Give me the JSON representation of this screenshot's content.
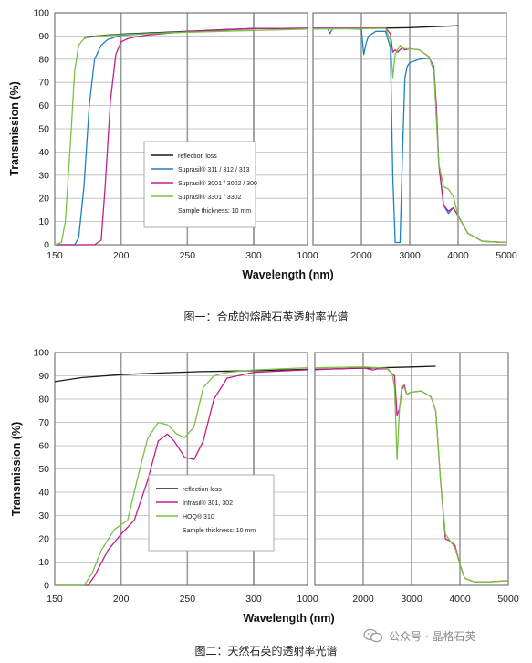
{
  "chart_data": [
    {
      "type": "line",
      "caption": "图一：合成的熔融石英透射率光谱",
      "xlabel": "Wavelength (nm)",
      "ylabel": "Transmission (%)",
      "ylim": [
        0,
        100
      ],
      "yticks": [
        0,
        10,
        20,
        30,
        40,
        50,
        60,
        70,
        80,
        90,
        100
      ],
      "grid": true,
      "legend_placement": "center",
      "panels": [
        {
          "xlim": [
            150,
            300
          ],
          "xticks": [
            150,
            200,
            250,
            300
          ],
          "tick_labels": [
            "150",
            "200",
            "250",
            "300"
          ]
        },
        {
          "xlim": [
            300,
            1000
          ],
          "xticks": [
            300,
            1000
          ],
          "tick_labels": [
            "",
            "1000"
          ]
        },
        {
          "xlim": [
            1000,
            5000
          ],
          "xticks": [
            1000,
            2000,
            3000,
            4000,
            5000
          ],
          "tick_labels": [
            "",
            "2000",
            "3000",
            "4000",
            "5000"
          ]
        }
      ],
      "legend": [
        {
          "label": "reflection loss",
          "color": "#1a1a1a"
        },
        {
          "label": "Suprasil® 311 / 312 / 313",
          "color": "#1f7fc4"
        },
        {
          "label": "Suprasil® 3001 / 3002 / 300",
          "color": "#c0208a"
        },
        {
          "label": "Suprasil® 3301 / 3302",
          "color": "#7ac143"
        }
      ],
      "note": "Sample thickness: 10 mm",
      "series": [
        {
          "name": "reflection loss",
          "color": "#1a1a1a",
          "x": [
            172,
            190,
            200,
            220,
            250,
            280,
            300,
            1000,
            1500,
            2000,
            2500,
            3000,
            3500,
            4000
          ],
          "y": [
            89.5,
            90.4,
            90.8,
            91.3,
            92.0,
            92.8,
            93.2,
            93.3,
            93.3,
            93.3,
            93.4,
            93.6,
            94.0,
            94.4
          ]
        },
        {
          "name": "Suprasil® 311 / 312 / 313",
          "color": "#1f7fc4",
          "x": [
            150,
            165,
            168,
            172,
            176,
            180,
            185,
            190,
            200,
            220,
            250,
            300,
            1000,
            1300,
            1350,
            1400,
            1500,
            2000,
            2050,
            2100,
            2150,
            2300,
            2500,
            2600,
            2650,
            2700,
            2750,
            2800,
            2850,
            2900,
            2950,
            3000,
            3200,
            3400,
            3500,
            3550,
            3600,
            3700,
            3800,
            3900,
            4000,
            4200,
            4500,
            5000
          ],
          "y": [
            0,
            0,
            3,
            25,
            60,
            80,
            86,
            88.5,
            90.3,
            91.0,
            91.9,
            93.2,
            93.3,
            93.3,
            91,
            93.1,
            93.2,
            93.0,
            82,
            87,
            90,
            92,
            92,
            85,
            30,
            1,
            1,
            1,
            40,
            72,
            77,
            78.5,
            80,
            80.5,
            77,
            60,
            35,
            17,
            13.5,
            16,
            12.5,
            5,
            1.5,
            1
          ]
        },
        {
          "name": "Suprasil® 3001 / 3002 / 300",
          "color": "#c0208a",
          "x": [
            150,
            180,
            185,
            188,
            192,
            196,
            200,
            205,
            210,
            220,
            250,
            300,
            1000,
            2500,
            2600,
            2650,
            2700,
            2750,
            2800,
            2850,
            2900,
            3000,
            3200,
            3400,
            3500,
            3550,
            3600,
            3700,
            3800,
            3900,
            4000,
            4200,
            4500,
            5000
          ],
          "y": [
            0,
            0,
            2,
            25,
            62,
            82,
            87.5,
            88.8,
            89.5,
            90.4,
            91.9,
            93.2,
            93.3,
            93.5,
            91,
            83,
            84,
            83,
            84,
            85,
            84,
            84.5,
            84,
            81,
            75,
            60,
            35,
            17,
            14.5,
            16,
            12.5,
            5,
            1.5,
            1
          ]
        },
        {
          "name": "Suprasil® 3301 / 3302",
          "color": "#7ac143",
          "x": [
            150,
            155,
            158,
            162,
            165,
            168,
            172,
            176,
            180,
            200,
            220,
            250,
            300,
            1000,
            2500,
            2600,
            2650,
            2700,
            2750,
            2800,
            2850,
            2900,
            3000,
            3200,
            3400,
            3500,
            3550,
            3600,
            3700,
            3800,
            3900,
            4000,
            4200,
            4500,
            5000
          ],
          "y": [
            0,
            1,
            10,
            45,
            75,
            86,
            88.8,
            89.4,
            89.8,
            90.6,
            91.0,
            91.6,
            92.4,
            93.0,
            93.3,
            88,
            72,
            82,
            84,
            86,
            85,
            84.5,
            84.5,
            84,
            81,
            75,
            55,
            35,
            25,
            24,
            21,
            12.5,
            5,
            1.5,
            1
          ]
        }
      ]
    },
    {
      "type": "line",
      "caption": "图二：天然石英的透射率光谱",
      "xlabel": "Wavelength (nm)",
      "ylabel": "Transmission (%)",
      "ylim": [
        0,
        100
      ],
      "yticks": [
        0,
        10,
        20,
        30,
        40,
        50,
        60,
        70,
        80,
        90,
        100
      ],
      "grid": true,
      "legend_placement": "center",
      "panels": [
        {
          "xlim": [
            150,
            300
          ],
          "xticks": [
            150,
            200,
            250,
            300
          ],
          "tick_labels": [
            "150",
            "200",
            "250",
            "300"
          ]
        },
        {
          "xlim": [
            300,
            1000
          ],
          "xticks": [
            300,
            1000
          ],
          "tick_labels": [
            "",
            "1000"
          ]
        },
        {
          "xlim": [
            1000,
            5000
          ],
          "xticks": [
            1000,
            2000,
            3000,
            4000,
            5000
          ],
          "tick_labels": [
            "",
            "2000",
            "3000",
            "4000",
            "5000"
          ]
        }
      ],
      "legend": [
        {
          "label": "reflection loss",
          "color": "#1a1a1a"
        },
        {
          "label": "Infrasil® 301, 302",
          "color": "#c0208a"
        },
        {
          "label": "HOQ® 310",
          "color": "#7ac143"
        }
      ],
      "note": "Sample thickness: 10 mm",
      "series": [
        {
          "name": "reflection loss",
          "color": "#1a1a1a",
          "x": [
            150,
            170,
            200,
            230,
            260,
            300,
            1000,
            2000,
            3000,
            3500
          ],
          "y": [
            87.5,
            89.2,
            90.5,
            91.2,
            91.8,
            92.2,
            92.8,
            93.3,
            93.8,
            94.1
          ]
        },
        {
          "name": "Infrasil® 301, 302",
          "color": "#c0208a",
          "x": [
            150,
            175,
            180,
            190,
            200,
            210,
            220,
            228,
            235,
            240,
            248,
            255,
            262,
            270,
            280,
            300,
            1000,
            2000,
            2200,
            2300,
            2500,
            2650,
            2700,
            2750,
            2800,
            2850,
            2900,
            3000,
            3200,
            3400,
            3500,
            3600,
            3700,
            3800,
            3900,
            4000,
            4100,
            4300,
            4600,
            5000
          ],
          "y": [
            0,
            0,
            4,
            15,
            22,
            28,
            45,
            62,
            65,
            62,
            55,
            54,
            62,
            80,
            89,
            91.5,
            92.6,
            93.5,
            92.5,
            93,
            93,
            90,
            73,
            76,
            84,
            86,
            82,
            83,
            83.5,
            81,
            75,
            45,
            20,
            19,
            17,
            9,
            3,
            1.5,
            1.5,
            2
          ]
        },
        {
          "name": "HOQ® 310",
          "color": "#7ac143",
          "x": [
            150,
            172,
            178,
            185,
            195,
            205,
            212,
            220,
            228,
            235,
            242,
            248,
            255,
            262,
            270,
            280,
            300,
            1000,
            2000,
            2200,
            2300,
            2500,
            2600,
            2650,
            2700,
            2750,
            2800,
            2850,
            2900,
            3000,
            3200,
            3400,
            3500,
            3600,
            3700,
            3800,
            3900,
            4000,
            4100,
            4300,
            4600,
            5000
          ],
          "y": [
            0,
            0,
            5,
            15,
            24,
            28,
            45,
            63,
            70,
            69,
            65,
            63.5,
            68,
            85,
            90,
            91.5,
            92.5,
            93.5,
            93.8,
            93.6,
            93.5,
            93.2,
            91,
            85,
            54,
            76,
            86,
            85,
            82,
            83,
            83.5,
            81,
            75,
            45,
            22,
            19,
            16,
            9,
            3,
            1.5,
            1.5,
            2
          ]
        }
      ]
    }
  ],
  "watermark": {
    "text": "公众号 · 晶格石英",
    "icon": "wechat-icon"
  }
}
